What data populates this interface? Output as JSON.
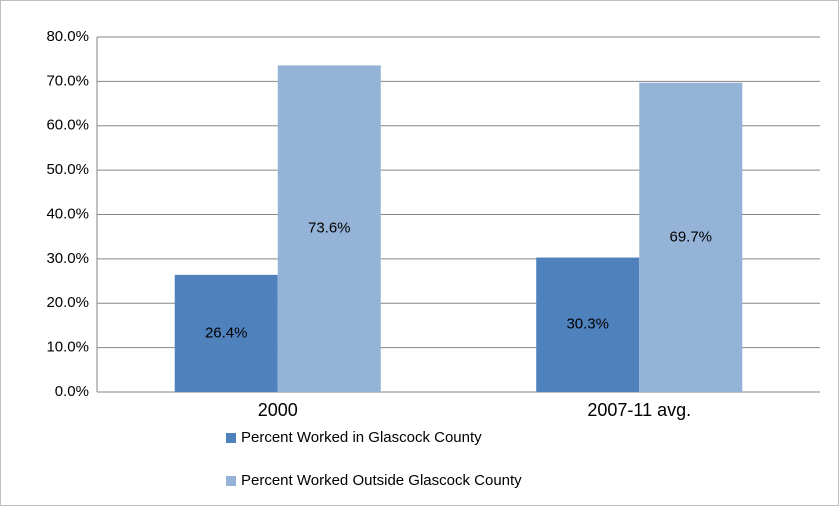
{
  "chart_data": {
    "type": "bar",
    "categories": [
      "2000",
      "2007-11 avg."
    ],
    "series": [
      {
        "name": "Percent Worked in Glascock County",
        "color": "#4f81bd",
        "values": [
          26.4,
          30.3
        ],
        "value_labels": [
          "26.4%",
          "30.3%"
        ]
      },
      {
        "name": "Percent Worked Outside Glascock County",
        "color": "#95b3d7",
        "values": [
          73.6,
          69.7
        ],
        "value_labels": [
          "73.6%",
          "69.7%"
        ]
      }
    ],
    "ylim": [
      0,
      80
    ],
    "yticks": [
      {
        "value": 0,
        "label": "0.0%"
      },
      {
        "value": 10,
        "label": "10.0%"
      },
      {
        "value": 20,
        "label": "20.0%"
      },
      {
        "value": 30,
        "label": "30.0%"
      },
      {
        "value": 40,
        "label": "40.0%"
      },
      {
        "value": 50,
        "label": "50.0%"
      },
      {
        "value": 60,
        "label": "60.0%"
      },
      {
        "value": 70,
        "label": "70.0%"
      },
      {
        "value": 80,
        "label": "80.0%"
      }
    ],
    "grid": true,
    "legend": "bottom"
  }
}
